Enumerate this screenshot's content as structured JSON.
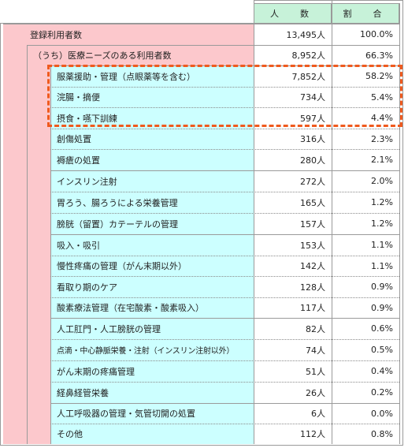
{
  "header": {
    "count_label": "人　数",
    "ratio_label": "割　合"
  },
  "total": {
    "label": "登録利用者数",
    "count": "13,495人",
    "ratio": "100.0%"
  },
  "medical_needs": {
    "label": "（うち）医療ニーズのある利用者数",
    "count": "8,952人",
    "ratio": "66.3%"
  },
  "groups": [
    {
      "items": [
        {
          "label": "服薬援助・管理（点眼薬等を含む）",
          "count": "7,852人",
          "ratio": "58.2%"
        },
        {
          "label": "浣腸・摘便",
          "count": "734人",
          "ratio": "5.4%"
        },
        {
          "label": "摂食・嚥下訓練",
          "count": "597人",
          "ratio": "4.4%"
        },
        {
          "label": "創傷処置",
          "count": "316人",
          "ratio": "2.3%"
        },
        {
          "label": "褥瘡の処置",
          "count": "280人",
          "ratio": "2.1%"
        }
      ]
    },
    {
      "items": [
        {
          "label": "インスリン注射",
          "count": "272人",
          "ratio": "2.0%"
        },
        {
          "label": "胃ろう、腸ろうによる栄養管理",
          "count": "165人",
          "ratio": "1.2%"
        },
        {
          "label": "膀胱（留置）カテーテルの管理",
          "count": "157人",
          "ratio": "1.2%"
        }
      ]
    },
    {
      "items": [
        {
          "label": "吸入・吸引",
          "count": "153人",
          "ratio": "1.1%"
        },
        {
          "label": "慢性疼痛の管理（がん末期以外）",
          "count": "142人",
          "ratio": "1.1%"
        },
        {
          "label": "看取り期のケア",
          "count": "128人",
          "ratio": "0.9%"
        },
        {
          "label": "酸素療法管理（在宅酸素・酸素吸入）",
          "count": "117人",
          "ratio": "0.9%"
        }
      ]
    },
    {
      "items": [
        {
          "label": "人工肛門・人工膀胱の管理",
          "count": "82人",
          "ratio": "0.6%"
        },
        {
          "label": "点滴・中心静脈栄養・注射（インスリン注射以外）",
          "count": "74人",
          "ratio": "0.5%"
        },
        {
          "label": "がん末期の疼痛管理",
          "count": "51人",
          "ratio": "0.4%"
        },
        {
          "label": "経鼻経管栄養",
          "count": "26人",
          "ratio": "0.2%"
        }
      ]
    },
    {
      "items": [
        {
          "label": "人工呼吸器の管理・気管切開の処置",
          "count": "6人",
          "ratio": "0.0%"
        },
        {
          "label": "その他",
          "count": "112人",
          "ratio": "0.8%"
        }
      ]
    }
  ]
}
